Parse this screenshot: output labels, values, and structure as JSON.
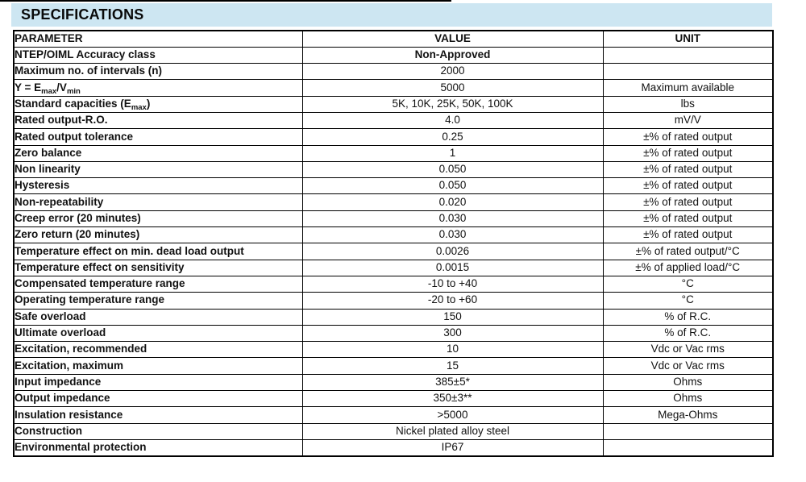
{
  "title": "SPECIFICATIONS",
  "colors": {
    "title_bg": "#cde6f2",
    "border": "#000000",
    "text": "#111111"
  },
  "table": {
    "headers": [
      "PARAMETER",
      "VALUE",
      "UNIT"
    ],
    "rows": [
      {
        "param": "NTEP/OIML Accuracy class",
        "value": "Non-Approved",
        "unit": "",
        "value_bold": true
      },
      {
        "param": "Maximum no. of intervals (n)",
        "value": "2000",
        "unit": ""
      },
      {
        "param": "Y = E_{max}/V_{min}",
        "value": "5000",
        "unit": "Maximum available"
      },
      {
        "param": "Standard capacities (E_{max})",
        "value": "5K, 10K, 25K, 50K, 100K",
        "unit": "lbs"
      },
      {
        "param": "Rated output-R.O.",
        "value": "4.0",
        "unit": "mV/V"
      },
      {
        "param": "Rated output tolerance",
        "value": "0.25",
        "unit": "±% of rated output"
      },
      {
        "param": "Zero balance",
        "value": "1",
        "unit": "±% of rated output"
      },
      {
        "param": "Non linearity",
        "value": "0.050",
        "unit": "±% of rated output"
      },
      {
        "param": "Hysteresis",
        "value": "0.050",
        "unit": "±% of rated output"
      },
      {
        "param": "Non-repeatability",
        "value": "0.020",
        "unit": "±% of rated output"
      },
      {
        "param": "Creep error (20 minutes)",
        "value": "0.030",
        "unit": "±% of rated output"
      },
      {
        "param": "Zero return (20 minutes)",
        "value": "0.030",
        "unit": "±% of rated output"
      },
      {
        "param": "Temperature effect on min. dead load output",
        "value": "0.0026",
        "unit": "±% of rated output/°C"
      },
      {
        "param": "Temperature effect on sensitivity",
        "value": "0.0015",
        "unit": "±% of applied load/°C"
      },
      {
        "param": "Compensated temperature range",
        "value": "-10 to +40",
        "unit": "°C"
      },
      {
        "param": "Operating temperature range",
        "value": "-20 to +60",
        "unit": "°C"
      },
      {
        "param": "Safe overload",
        "value": "150",
        "unit": "% of R.C."
      },
      {
        "param": "Ultimate overload",
        "value": "300",
        "unit": "% of R.C."
      },
      {
        "param": "Excitation, recommended",
        "value": "10",
        "unit": "Vdc or Vac rms"
      },
      {
        "param": "Excitation, maximum",
        "value": "15",
        "unit": "Vdc or Vac rms"
      },
      {
        "param": "Input impedance",
        "value": "385±5*",
        "unit": "Ohms"
      },
      {
        "param": "Output impedance",
        "value": "350±3**",
        "unit": "Ohms"
      },
      {
        "param": "Insulation resistance",
        "value": ">5000",
        "unit": "Mega-Ohms"
      },
      {
        "param": "Construction",
        "value": "Nickel plated alloy steel",
        "unit": ""
      },
      {
        "param": "Environmental protection",
        "value": "IP67",
        "unit": ""
      }
    ]
  }
}
